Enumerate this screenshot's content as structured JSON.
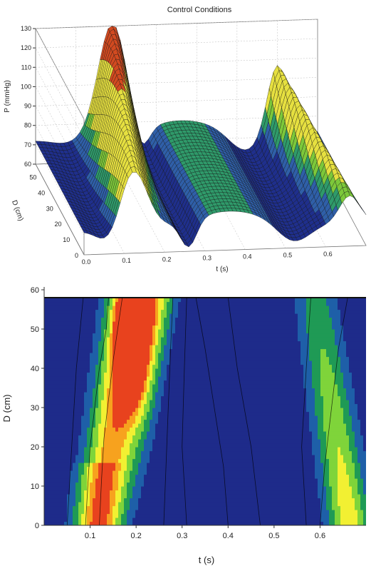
{
  "chart_data": [
    {
      "type": "surface3d",
      "title": "Control Conditions",
      "zlabel": "P (mmHg)",
      "ylabel": "D (cm)",
      "xlabel": "t (s)",
      "z_ticks": [
        "60",
        "70",
        "80",
        "90",
        "100",
        "110",
        "120",
        "130"
      ],
      "y_ticks": [
        "0",
        "10",
        "20",
        "30",
        "40",
        "50"
      ],
      "x_ticks": [
        "0.0",
        "0.1",
        "0.2",
        "0.3",
        "0.4",
        "0.5",
        "0.6"
      ],
      "zlim": [
        60,
        130
      ],
      "ylim": [
        0,
        58
      ],
      "xlim": [
        0,
        0.7
      ],
      "colors": [
        "#1f2f8c",
        "#2f5fa8",
        "#2f9a6a",
        "#7cc83a",
        "#e6e040",
        "#d24a20"
      ]
    },
    {
      "type": "heatmap",
      "xlabel": "t (s)",
      "ylabel": "D (cm)",
      "x_ticks": [
        "0.1",
        "0.2",
        "0.3",
        "0.4",
        "0.5",
        "0.6"
      ],
      "y_ticks": [
        "0",
        "10",
        "20",
        "30",
        "40",
        "50",
        "60"
      ],
      "xlim": [
        0,
        0.7
      ],
      "ylim": [
        0,
        60
      ],
      "colors": [
        "#1e2b8a",
        "#1e5fa8",
        "#1f9a55",
        "#7fd43a",
        "#f2f032",
        "#f7a21e",
        "#e8421e"
      ]
    }
  ]
}
